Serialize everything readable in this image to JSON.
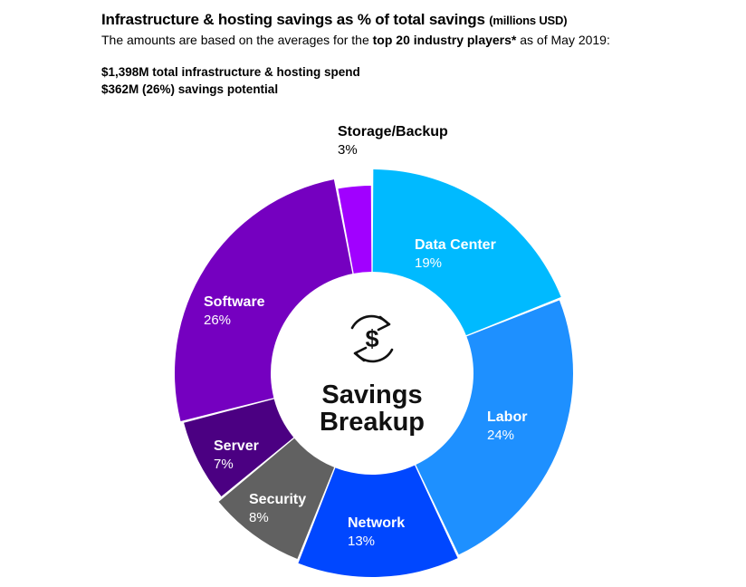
{
  "header": {
    "title": "Infrastructure & hosting savings as % of total savings",
    "title_unit": "(millions USD)",
    "subtitle_pre": "The amounts are based on the averages for the ",
    "subtitle_bold": "top 20 industry players*",
    "subtitle_post": " as of May 2019:",
    "stat_spend": "$1,398M total infrastructure & hosting spend",
    "stat_savings": "$362M (26%) savings potential"
  },
  "center": {
    "line1": "Savings",
    "line2": "Breakup",
    "icon": "dollar-cycle-icon"
  },
  "chart_data": {
    "type": "pie",
    "style": "donut",
    "categories": [
      "Data Center",
      "Labor",
      "Network",
      "Security",
      "Server",
      "Software",
      "Storage/Backup"
    ],
    "values": [
      19,
      24,
      13,
      8,
      7,
      26,
      3
    ],
    "value_labels": [
      "19%",
      "24%",
      "13%",
      "8%",
      "7%",
      "26%",
      "3%"
    ],
    "colors": [
      "#00baff",
      "#1e90ff",
      "#0047ff",
      "#616161",
      "#4b0082",
      "#7500c0",
      "#a100ff"
    ],
    "label_colors": [
      "#ffffff",
      "#ffffff",
      "#ffffff",
      "#ffffff",
      "#ffffff",
      "#ffffff",
      "#000000"
    ]
  }
}
